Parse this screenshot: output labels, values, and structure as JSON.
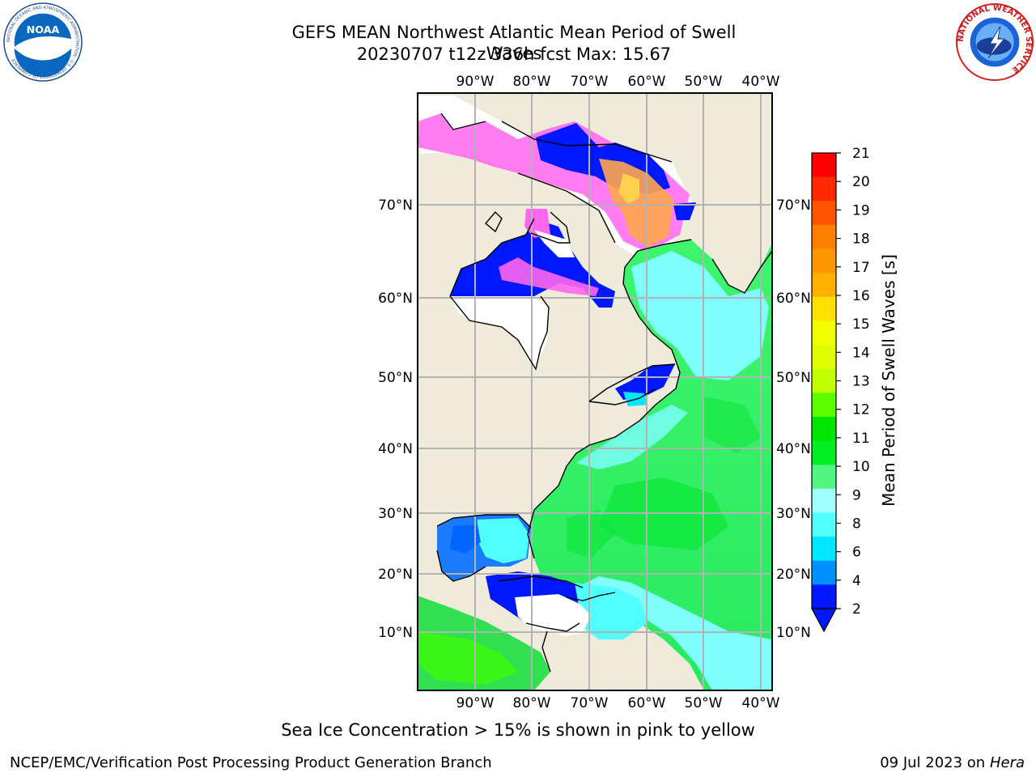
{
  "title": {
    "line1": "GEFS MEAN Northwest Atlantic Mean Period of Swell Waves",
    "line2": "20230707 t12z 336h fcst   Max: 15.67"
  },
  "caption": "Sea Ice Concentration > 15% is shown in pink to yellow",
  "footer": {
    "left": "NCEP/EMC/Verification Post Processing Product Generation Branch",
    "right_date": "09 Jul 2023 on ",
    "right_host": "Hera"
  },
  "logos": {
    "noaa_text": "NOAA",
    "noaa_ring": "NATIONAL OCEANIC AND ATMOSPHERIC ADMINISTRATION · U.S. DEPARTMENT OF COMMERCE",
    "nws_ring": "NATIONAL WEATHER SERVICE"
  },
  "map": {
    "lon_labels": [
      "90°W",
      "80°W",
      "70°W",
      "60°W",
      "50°W",
      "40°W"
    ],
    "lat_labels": [
      "70°N",
      "60°N",
      "50°N",
      "40°N",
      "30°N",
      "20°N",
      "10°N"
    ],
    "colors": {
      "land": "#efebdb",
      "ice_hole": "#ffffff",
      "grid": "#b3b3b3",
      "coast": "#000000"
    }
  },
  "colorbar": {
    "label": "Mean Period of Swell Waves [s]",
    "ticks": [
      "21",
      "20",
      "19",
      "18",
      "17",
      "16",
      "15",
      "14",
      "13",
      "12",
      "11",
      "10",
      "9",
      "8",
      "6",
      "4",
      "2"
    ],
    "colors_top_to_bottom": [
      "#ff0000",
      "#ff2a00",
      "#ff5500",
      "#ff8000",
      "#ff9500",
      "#ffb000",
      "#ffe000",
      "#f2ff00",
      "#dfff00",
      "#c0ff00",
      "#5cff00",
      "#00e600",
      "#00ee22",
      "#52f682",
      "#a0ffff",
      "#50ffff",
      "#00e8ff",
      "#0090ff",
      "#0018ff"
    ]
  }
}
